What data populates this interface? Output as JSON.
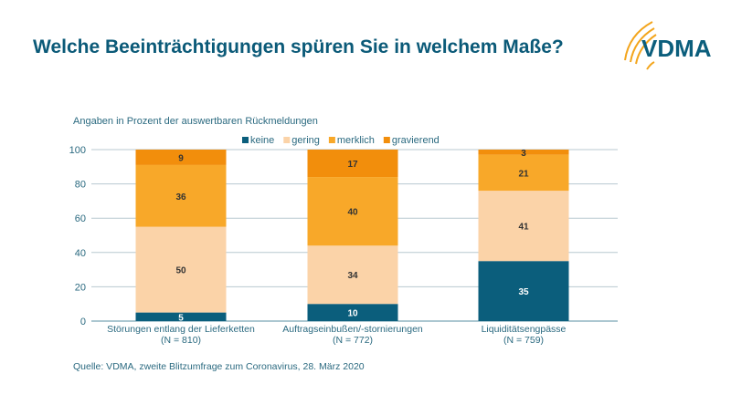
{
  "title": "Welche Beeinträchtigungen spüren Sie in welchem Maße?",
  "logo_text": "VDMA",
  "source": "Quelle: VDMA, zweite Blitzumfrage zum Coronavirus, 28. März 2020",
  "chart_data": {
    "type": "bar",
    "stacked": true,
    "subtitle": "Angaben in Prozent der auswertbaren Rückmeldungen",
    "categories": [
      [
        "Störungen entlang der Lieferketten",
        "(N = 810)"
      ],
      [
        "Auftragseinbußen/-stornierungen",
        "(N = 772)"
      ],
      [
        "Liquiditätsengpässe",
        "(N = 759)"
      ]
    ],
    "series": [
      {
        "name": "keine",
        "color": "#0b5e7c",
        "label_color": "#ffffff",
        "values": [
          5,
          10,
          35
        ]
      },
      {
        "name": "gering",
        "color": "#fbd3a8",
        "label_color": "#333333",
        "values": [
          50,
          34,
          41
        ]
      },
      {
        "name": "merklich",
        "color": "#f8a829",
        "label_color": "#333333",
        "values": [
          36,
          40,
          21
        ]
      },
      {
        "name": "gravierend",
        "color": "#f28e0c",
        "label_color": "#333333",
        "values": [
          9,
          17,
          3
        ]
      }
    ],
    "ylim": [
      0,
      100
    ],
    "yticks": [
      0,
      20,
      40,
      60,
      80,
      100
    ],
    "grid": true,
    "legend": "top"
  }
}
